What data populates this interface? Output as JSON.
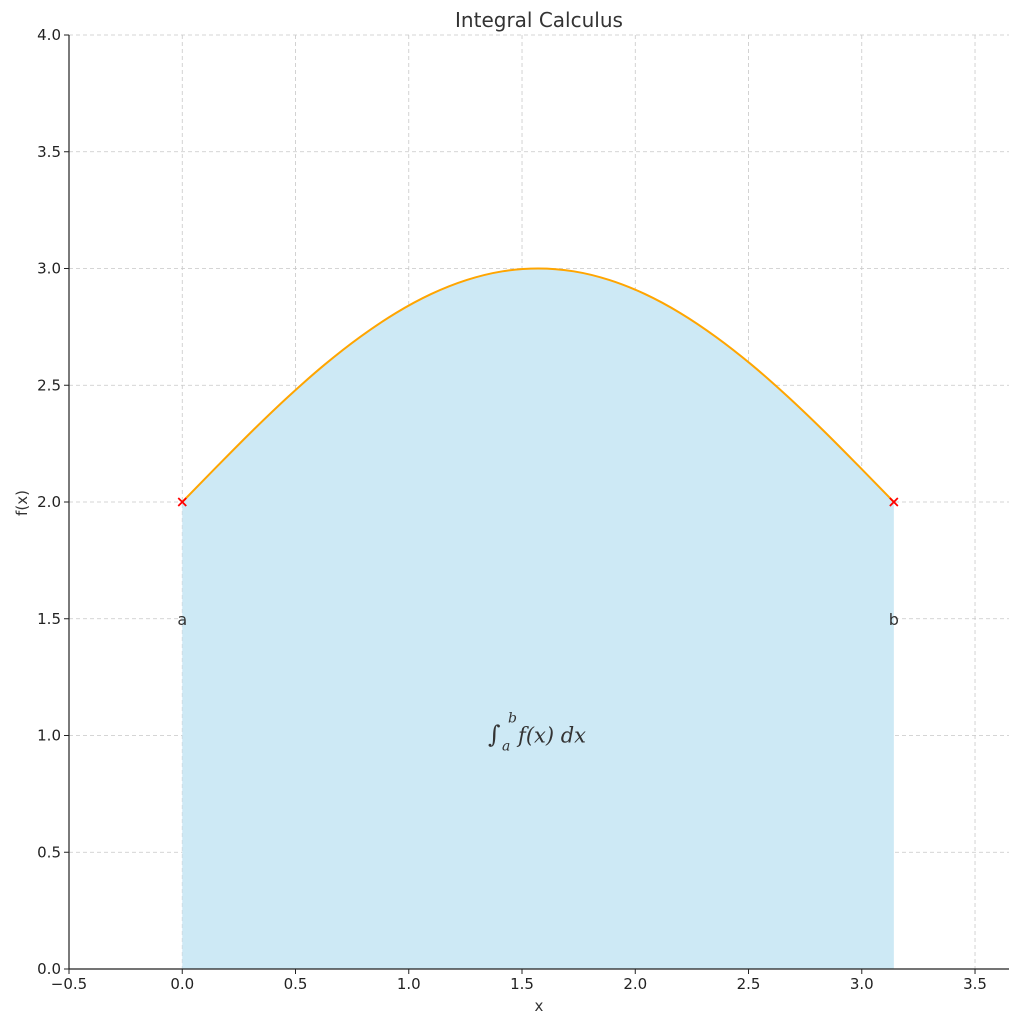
{
  "chart_data": {
    "type": "area",
    "title": "Integral Calculus",
    "xlabel": "x",
    "ylabel": "f(x)",
    "xlim": [
      -0.5,
      3.65
    ],
    "ylim": [
      0,
      4.0
    ],
    "grid": true,
    "x_ticks": [
      -0.5,
      0.0,
      0.5,
      1.0,
      1.5,
      2.0,
      2.5,
      3.0,
      3.5
    ],
    "x_tick_labels": [
      "−0.5",
      "0.0",
      "0.5",
      "1.0",
      "1.5",
      "2.0",
      "2.5",
      "3.0",
      "3.5"
    ],
    "y_ticks": [
      0.0,
      0.5,
      1.0,
      1.5,
      2.0,
      2.5,
      3.0,
      3.5,
      4.0
    ],
    "y_tick_labels": [
      "0.0",
      "0.5",
      "1.0",
      "1.5",
      "2.0",
      "2.5",
      "3.0",
      "3.5",
      "4.0"
    ],
    "series": [
      {
        "type": "line",
        "color": "#ffa500",
        "x": [
          0.0,
          0.1571,
          0.3142,
          0.4712,
          0.6283,
          0.7854,
          0.9425,
          1.0996,
          1.2566,
          1.4137,
          1.5708,
          1.7279,
          1.885,
          2.042,
          2.1991,
          2.3562,
          2.5133,
          2.6704,
          2.8274,
          2.9845,
          3.1416
        ],
        "y": [
          2.0,
          2.156,
          2.309,
          2.454,
          2.588,
          2.707,
          2.809,
          2.891,
          2.951,
          2.988,
          3.0,
          2.988,
          2.951,
          2.891,
          2.809,
          2.707,
          2.588,
          2.454,
          2.309,
          2.156,
          2.0
        ]
      }
    ],
    "fill": {
      "from_x": 0.0,
      "to_x": 3.1416,
      "color": "#cde9f5"
    },
    "markers": [
      {
        "x": 0.0,
        "y": 2.0,
        "symbol": "x",
        "color": "#ff0000"
      },
      {
        "x": 3.1416,
        "y": 2.0,
        "symbol": "x",
        "color": "#ff0000"
      }
    ],
    "annotations": [
      {
        "text": "a",
        "x": 0.0,
        "y": 1.5
      },
      {
        "text": "b",
        "x": 3.1416,
        "y": 1.5
      }
    ],
    "integral_label": {
      "symbol": "∫",
      "lower": "a",
      "upper": "b",
      "body": "f(x) dx",
      "x": 1.5708,
      "y": 1.0
    }
  }
}
